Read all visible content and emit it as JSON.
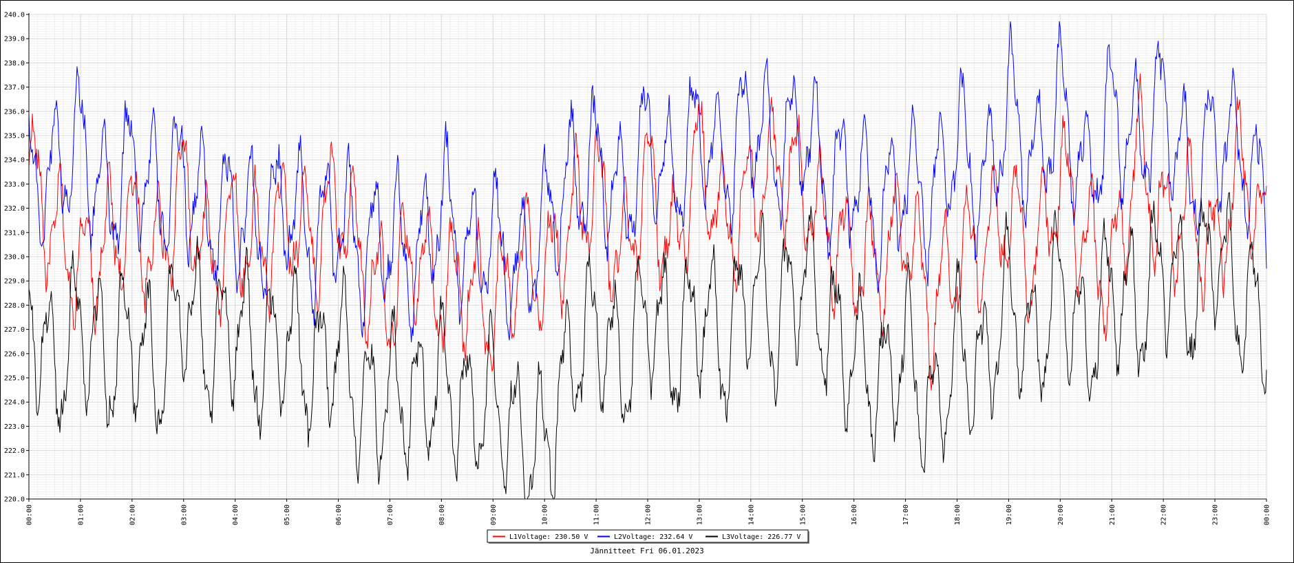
{
  "chart_data": {
    "type": "line",
    "title": "",
    "xlabel": "Jännitteet Fri 06.01.2023",
    "ylabel": "",
    "xlim": [
      "00:00",
      "24:00"
    ],
    "ylim": [
      220.0,
      240.0
    ],
    "y_ticks": [
      "220.0",
      "221.0",
      "222.0",
      "223.0",
      "224.0",
      "225.0",
      "226.0",
      "227.0",
      "228.0",
      "229.0",
      "230.0",
      "231.0",
      "232.0",
      "233.0",
      "234.0",
      "235.0",
      "236.0",
      "237.0",
      "238.0",
      "239.0",
      "240.0"
    ],
    "x_ticks": [
      "00:00",
      "01:00",
      "02:00",
      "03:00",
      "04:00",
      "05:00",
      "06:00",
      "07:00",
      "08:00",
      "09:00",
      "10:00",
      "11:00",
      "12:00",
      "13:00",
      "14:00",
      "15:00",
      "16:00",
      "17:00",
      "18:00",
      "19:00",
      "20:00",
      "21:00",
      "22:00",
      "23:00",
      "00:00"
    ],
    "grid": true,
    "legend_position": "bottom-center",
    "series": [
      {
        "name": "L1Voltage: 230.50 V",
        "color": "#ff0000",
        "x": [
          0,
          0.5,
          1,
          1.5,
          2,
          2.5,
          3,
          3.5,
          4,
          4.5,
          5,
          5.5,
          6,
          6.5,
          7,
          7.5,
          8,
          8.5,
          9,
          9.5,
          10,
          10.5,
          11,
          11.5,
          12,
          12.5,
          13,
          13.5,
          14,
          14.5,
          15,
          15.5,
          16,
          16.5,
          17,
          17.5,
          18,
          18.5,
          19,
          19.5,
          20,
          20.5,
          21,
          21.5,
          22,
          22.5,
          23,
          23.5,
          24
        ],
        "values": [
          233.5,
          231.0,
          229.5,
          230.5,
          231.5,
          230.0,
          233.0,
          229.5,
          231.5,
          230.0,
          232.0,
          230.5,
          232.5,
          229.5,
          228.0,
          230.5,
          228.5,
          229.0,
          227.5,
          230.0,
          229.0,
          231.5,
          233.0,
          229.5,
          233.5,
          230.0,
          234.5,
          231.0,
          232.5,
          234.0,
          233.0,
          231.0,
          230.0,
          229.5,
          231.5,
          227.5,
          230.0,
          230.5,
          232.0,
          229.5,
          233.5,
          230.5,
          229.0,
          234.5,
          231.0,
          232.0,
          230.0,
          234.0,
          230.5
        ]
      },
      {
        "name": "L2Voltage: 232.64 V",
        "color": "#0000ff",
        "x": [
          0,
          0.5,
          1,
          1.5,
          2,
          2.5,
          3,
          3.5,
          4,
          4.5,
          5,
          5.5,
          6,
          6.5,
          7,
          7.5,
          8,
          8.5,
          9,
          9.5,
          10,
          10.5,
          11,
          11.5,
          12,
          12.5,
          13,
          13.5,
          14,
          14.5,
          15,
          15.5,
          16,
          16.5,
          17,
          17.5,
          18,
          18.5,
          19,
          19.5,
          20,
          20.5,
          21,
          21.5,
          22,
          22.5,
          23,
          23.5,
          24
        ],
        "values": [
          233.0,
          233.5,
          235.0,
          232.0,
          234.0,
          232.5,
          233.5,
          231.5,
          232.0,
          231.0,
          232.5,
          230.5,
          232.0,
          230.0,
          231.0,
          229.5,
          232.5,
          230.0,
          231.0,
          229.0,
          231.5,
          233.0,
          234.0,
          232.0,
          235.0,
          233.0,
          235.5,
          233.5,
          236.0,
          234.0,
          235.5,
          233.0,
          233.5,
          231.5,
          233.5,
          232.0,
          235.0,
          232.5,
          236.5,
          233.5,
          236.5,
          233.0,
          236.0,
          234.5,
          236.5,
          233.0,
          235.0,
          234.5,
          232.0
        ]
      },
      {
        "name": "L3Voltage: 226.77 V",
        "color": "#000000",
        "x": [
          0,
          0.5,
          1,
          1.5,
          2,
          2.5,
          3,
          3.5,
          4,
          4.5,
          5,
          5.5,
          6,
          6.5,
          7,
          7.5,
          8,
          8.5,
          9,
          9.5,
          10,
          10.5,
          11,
          11.5,
          12,
          12.5,
          13,
          13.5,
          14,
          14.5,
          15,
          15.5,
          16,
          16.5,
          17,
          17.5,
          18,
          18.5,
          19,
          19.5,
          20,
          20.5,
          21,
          21.5,
          22,
          22.5,
          23,
          23.5,
          24
        ],
        "values": [
          228.0,
          225.0,
          227.5,
          225.5,
          227.0,
          225.0,
          228.5,
          226.0,
          227.5,
          225.5,
          227.0,
          225.0,
          226.5,
          223.5,
          224.5,
          224.0,
          225.0,
          223.5,
          224.5,
          222.5,
          222.0,
          225.5,
          227.5,
          225.0,
          228.0,
          226.0,
          228.0,
          226.0,
          229.0,
          227.0,
          229.5,
          227.0,
          226.0,
          224.5,
          226.5,
          223.0,
          226.5,
          225.0,
          228.5,
          226.0,
          229.0,
          226.0,
          229.0,
          227.5,
          230.0,
          228.0,
          230.5,
          228.0,
          227.5
        ]
      }
    ]
  }
}
